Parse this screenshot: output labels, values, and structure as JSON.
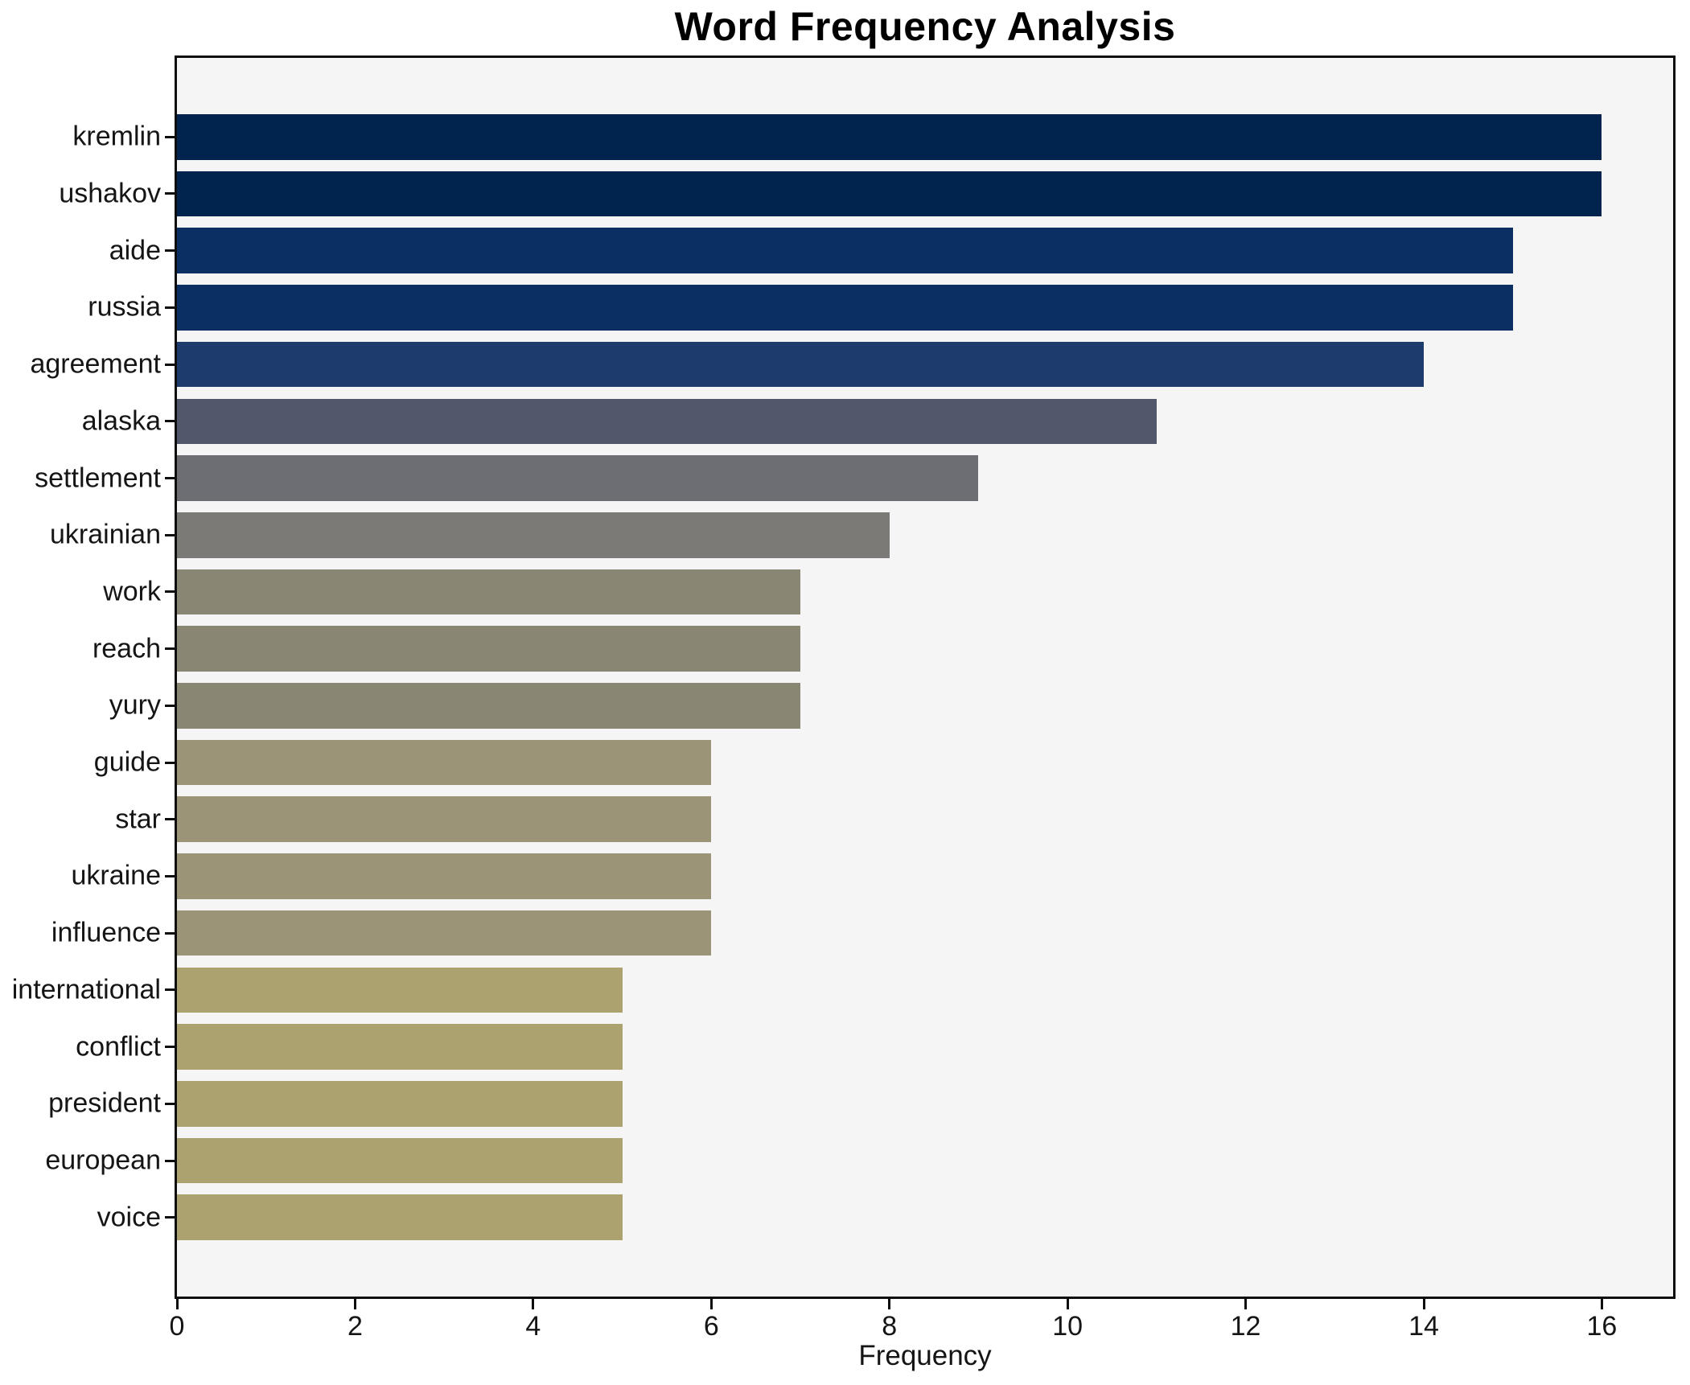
{
  "chart_data": {
    "type": "bar",
    "orientation": "horizontal",
    "title": "Word Frequency Analysis",
    "xlabel": "Frequency",
    "ylabel": "",
    "categories": [
      "kremlin",
      "ushakov",
      "aide",
      "russia",
      "agreement",
      "alaska",
      "settlement",
      "ukrainian",
      "work",
      "reach",
      "yury",
      "guide",
      "star",
      "ukraine",
      "influence",
      "international",
      "conflict",
      "president",
      "european",
      "voice"
    ],
    "values": [
      16,
      16,
      15,
      15,
      14,
      11,
      9,
      8,
      7,
      7,
      7,
      6,
      6,
      6,
      6,
      5,
      5,
      5,
      5,
      5
    ],
    "bar_colors": [
      "#01244e",
      "#01244e",
      "#0b2f62",
      "#0b2f62",
      "#1e3b6d",
      "#51586b",
      "#6d6e73",
      "#7b7a76",
      "#898674",
      "#898674",
      "#898674",
      "#9c9477",
      "#9c9477",
      "#9c9477",
      "#9c9477",
      "#aca26f",
      "#aca26f",
      "#aca26f",
      "#aca26f",
      "#aca26f"
    ],
    "xlim": [
      0,
      16.8
    ],
    "xticks": [
      0,
      2,
      4,
      6,
      8,
      10,
      12,
      14,
      16
    ],
    "grid": false,
    "legend": "none",
    "plot_bg": "#f5f5f6",
    "fig_bg": "#ffffff",
    "spine_color": "#0e0e0e",
    "text_color": "#151515"
  }
}
